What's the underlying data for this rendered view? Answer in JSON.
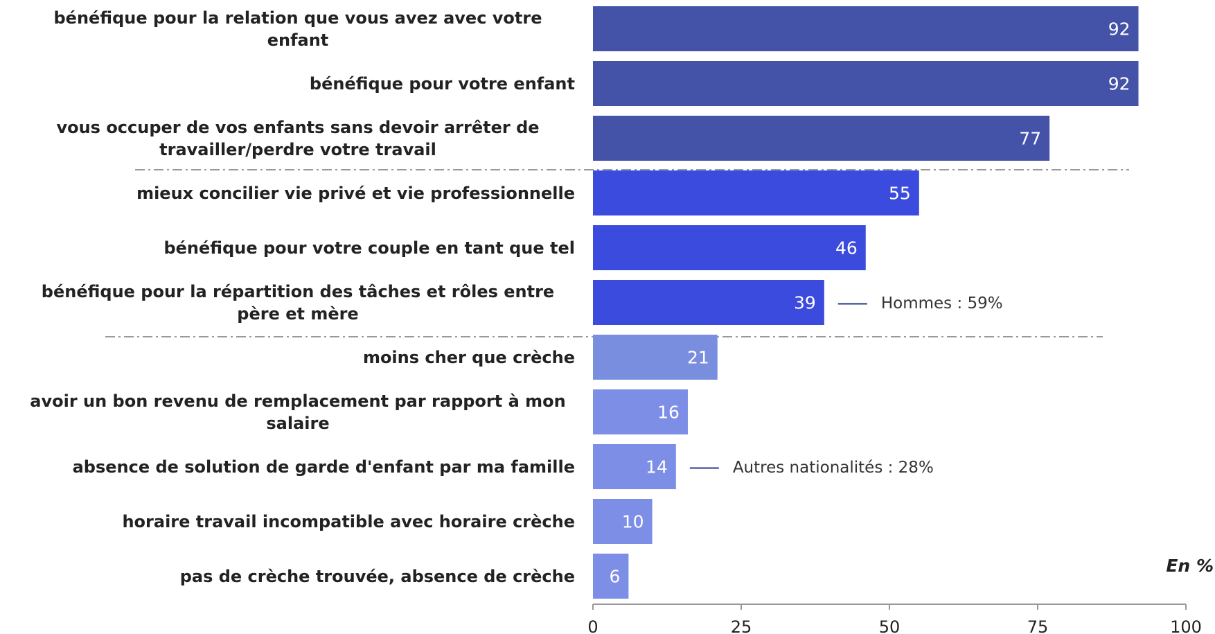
{
  "chart_data": {
    "type": "bar",
    "orientation": "horizontal",
    "categories": [
      "bénéfique pour la relation que vous avez avec votre enfant",
      "bénéfique pour votre enfant",
      "vous occuper de vos enfants sans devoir arrêter de travailler/perdre votre travail",
      "mieux concilier vie privé et vie professionnelle",
      "bénéfique pour votre couple en tant que tel",
      "bénéfique pour la répartition des tâches et rôles entre père et mère",
      "moins cher que crèche",
      "avoir un bon revenu de remplacement par rapport à mon salaire",
      "absence de solution de garde d'enfant par ma famille",
      "horaire travail incompatible avec horaire crèche",
      "pas de crèche trouvée, absence de crèche"
    ],
    "values": [
      92,
      92,
      77,
      55,
      46,
      39,
      21,
      16,
      14,
      10,
      6
    ],
    "colors": [
      "#4452a8",
      "#4452a8",
      "#4452a8",
      "#3a4bde",
      "#3a4bde",
      "#3a4bde",
      "#7a8ee0",
      "#7d8ee6",
      "#7d8ee6",
      "#7d8ee6",
      "#7d8ee6"
    ],
    "xlim": [
      0,
      100
    ],
    "xticks": [
      0,
      25,
      50,
      75,
      100
    ],
    "annotations": [
      {
        "index": 5,
        "text": "Hommes : 59%"
      },
      {
        "index": 8,
        "text": "Autres nationalités : 28%"
      }
    ],
    "note": "En %"
  }
}
